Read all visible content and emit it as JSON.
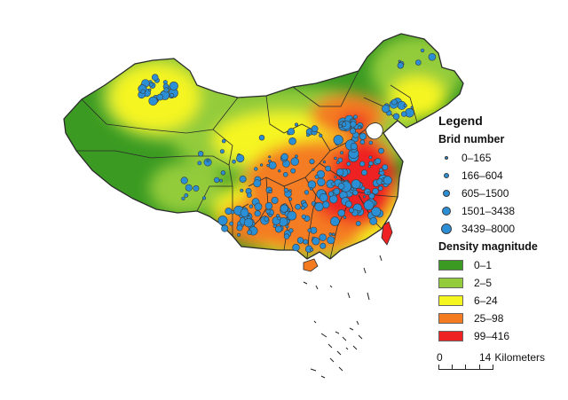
{
  "legend": {
    "title": "Legend",
    "bird_heading": "Brid number",
    "bird_classes": [
      {
        "label": "0–165",
        "size": 4
      },
      {
        "label": "166–604",
        "size": 6
      },
      {
        "label": "605–1500",
        "size": 8
      },
      {
        "label": "1501–3438",
        "size": 10
      },
      {
        "label": "3439–8000",
        "size": 12
      }
    ],
    "density_heading": "Density magnitude",
    "density_classes": [
      {
        "label": "0–1",
        "color": "#3a9a22"
      },
      {
        "label": "2–5",
        "color": "#93cc3a"
      },
      {
        "label": "6–24",
        "color": "#f5f520"
      },
      {
        "label": "25–98",
        "color": "#f47b20"
      },
      {
        "label": "99–416",
        "color": "#ee2222"
      }
    ]
  },
  "scale_bar": {
    "start": "0",
    "end": "14",
    "unit": "Kilometers"
  },
  "colors": {
    "point_fill": "#2b8fd6",
    "point_stroke": "#3b3b3b",
    "boundary": "#2a2a2a"
  }
}
